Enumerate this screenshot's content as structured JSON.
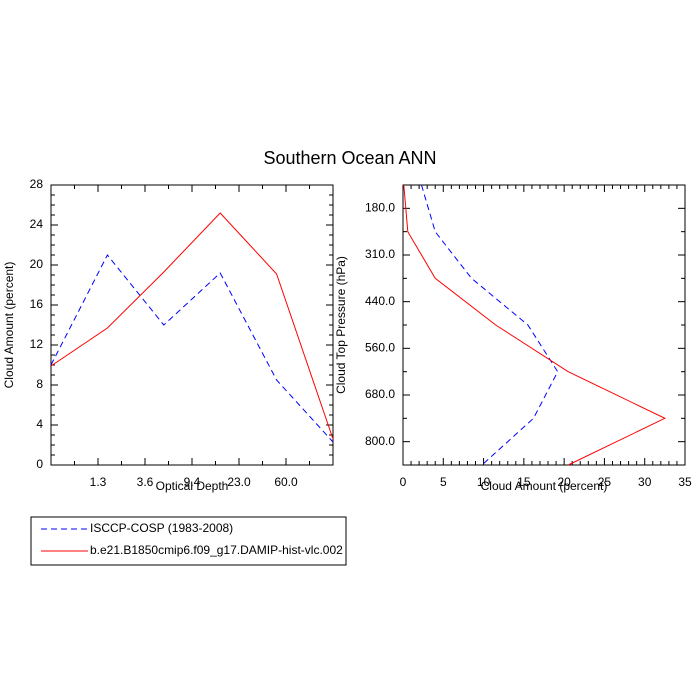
{
  "title": "Southern Ocean ANN",
  "chart_data": [
    {
      "type": "line",
      "xlabel": "Optical Depth",
      "ylabel": "Cloud Amount (percent)",
      "x_tick_labels": [
        "1.3",
        "3.6",
        "9.4",
        "23.0",
        "60.0"
      ],
      "y_tick_labels": [
        "0",
        "4",
        "8",
        "12",
        "16",
        "20",
        "24",
        "28"
      ],
      "ylim": [
        0,
        28
      ],
      "series": [
        {
          "name": "ISCCP-COSP (1983-2008)",
          "color": "#0000ff",
          "dash": "dashed",
          "values": [
            10.0,
            21.0,
            14.0,
            19.2,
            8.5,
            2.3
          ]
        },
        {
          "name": "b.e21.B1850cmip6.f09_g17.DAMIP-hist-vlc.002",
          "color": "#ff0000",
          "dash": "solid",
          "values": [
            9.9,
            13.7,
            19.3,
            25.2,
            19.1,
            2.6
          ]
        }
      ]
    },
    {
      "type": "line",
      "xlabel": "Cloud Amount (percent)",
      "ylabel": "Cloud Top Pressure (hPa)",
      "x_tick_labels": [
        "0",
        "5",
        "10",
        "15",
        "20",
        "25",
        "30",
        "35"
      ],
      "y_tick_labels": [
        "180.0",
        "310.0",
        "440.0",
        "560.0",
        "680.0",
        "800.0"
      ],
      "xlim": [
        0,
        35
      ],
      "series": [
        {
          "name": "ISCCP-COSP (1983-2008)",
          "color": "#0000ff",
          "dash": "dashed",
          "points": [
            [
              2.3,
              0
            ],
            [
              4.0,
              1
            ],
            [
              8.5,
              2
            ],
            [
              15.5,
              3
            ],
            [
              19.2,
              4
            ],
            [
              16.2,
              5
            ],
            [
              9.8,
              6
            ]
          ]
        },
        {
          "name": "b.e21.B1850cmip6.f09_g17.DAMIP-hist-vlc.002",
          "color": "#ff0000",
          "dash": "solid",
          "points": [
            [
              0.1,
              0
            ],
            [
              0.6,
              1
            ],
            [
              4.0,
              2
            ],
            [
              11.5,
              3
            ],
            [
              20.5,
              4
            ],
            [
              32.5,
              5
            ],
            [
              20.5,
              6
            ]
          ]
        }
      ]
    }
  ],
  "legend": [
    {
      "label": "ISCCP-COSP (1983-2008)",
      "color": "#0000ff",
      "dash": "dashed"
    },
    {
      "label": "b.e21.B1850cmip6.f09_g17.DAMIP-hist-vlc.002",
      "color": "#ff0000",
      "dash": "solid"
    }
  ]
}
